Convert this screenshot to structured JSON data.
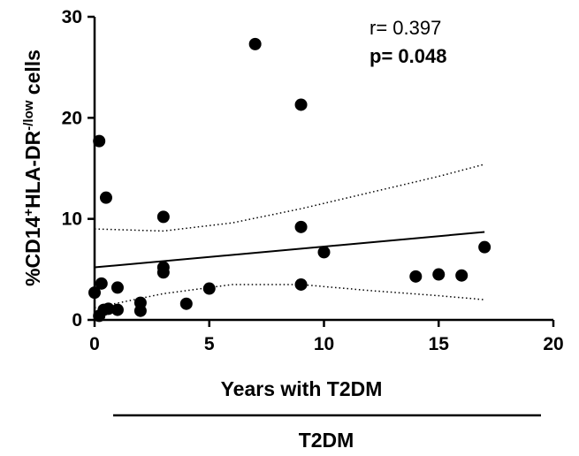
{
  "chart_data": {
    "type": "scatter",
    "xlabel": "Years with T2DM",
    "ylabel_parts": {
      "prefix": "%CD14",
      "sup1": "+",
      "mid": "HLA-DR",
      "sup2": "-/low",
      "suffix": " cells"
    },
    "group_label": "T2DM",
    "xlim": [
      0,
      20
    ],
    "ylim": [
      0,
      30
    ],
    "x_ticks": [
      0,
      5,
      10,
      15,
      20
    ],
    "y_ticks": [
      0,
      10,
      20,
      30
    ],
    "annotations": {
      "r": "r= 0.397",
      "p": "p= 0.048"
    },
    "points": [
      {
        "x": 0.2,
        "y": 17.7
      },
      {
        "x": 0.5,
        "y": 12.1
      },
      {
        "x": 0.0,
        "y": 2.7
      },
      {
        "x": 0.2,
        "y": 0.4
      },
      {
        "x": 0.3,
        "y": 3.6
      },
      {
        "x": 0.4,
        "y": 1.0
      },
      {
        "x": 0.6,
        "y": 1.1
      },
      {
        "x": 1.0,
        "y": 3.2
      },
      {
        "x": 1.0,
        "y": 1.0
      },
      {
        "x": 2.0,
        "y": 1.7
      },
      {
        "x": 2.0,
        "y": 0.9
      },
      {
        "x": 3.0,
        "y": 10.2
      },
      {
        "x": 3.0,
        "y": 5.2
      },
      {
        "x": 3.0,
        "y": 4.7
      },
      {
        "x": 4.0,
        "y": 1.6
      },
      {
        "x": 5.0,
        "y": 3.1
      },
      {
        "x": 7.0,
        "y": 27.3
      },
      {
        "x": 9.0,
        "y": 21.3
      },
      {
        "x": 9.0,
        "y": 9.2
      },
      {
        "x": 9.0,
        "y": 3.5
      },
      {
        "x": 10.0,
        "y": 6.7
      },
      {
        "x": 14.0,
        "y": 4.3
      },
      {
        "x": 15.0,
        "y": 4.5
      },
      {
        "x": 16.0,
        "y": 4.4
      },
      {
        "x": 17.0,
        "y": 7.2
      }
    ],
    "regression": {
      "x": [
        0,
        17
      ],
      "y": [
        5.2,
        8.7
      ]
    },
    "ci_upper": {
      "x": [
        0,
        3,
        6,
        9,
        12,
        15,
        17
      ],
      "y": [
        9.0,
        8.8,
        9.6,
        11.0,
        12.6,
        14.2,
        15.4
      ]
    },
    "ci_lower": {
      "x": [
        0,
        3,
        6,
        9,
        12,
        15,
        17
      ],
      "y": [
        1.2,
        2.6,
        3.5,
        3.5,
        2.9,
        2.4,
        2.0
      ]
    },
    "grid": false,
    "legend": "none"
  }
}
